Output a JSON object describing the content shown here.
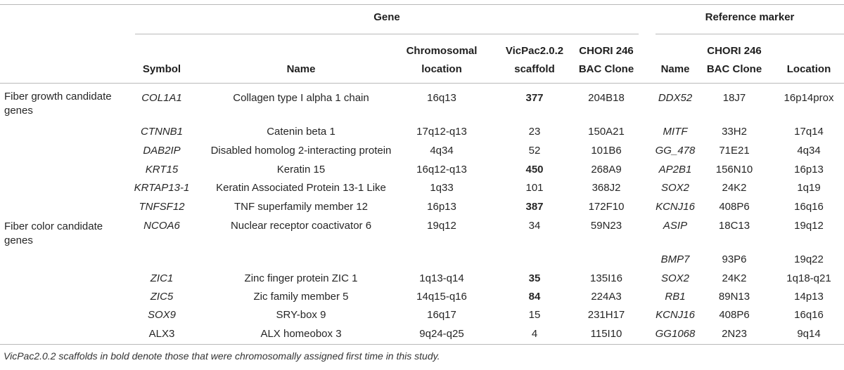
{
  "table": {
    "group_headers": {
      "gene": "Gene",
      "reference": "Reference marker"
    },
    "column_headers": {
      "symbol": "Symbol",
      "name": "Name",
      "chrom_location": [
        "Chromosomal",
        "location"
      ],
      "scaffold": [
        "VicPac2.0.2",
        "scaffold"
      ],
      "chori_clone": [
        "CHORI 246",
        "BAC Clone"
      ],
      "ref_name": "Name",
      "ref_clone": [
        "CHORI 246",
        "BAC Clone"
      ],
      "ref_location": "Location"
    },
    "categories": [
      {
        "label": [
          "Fiber growth candidate",
          "genes"
        ]
      },
      {
        "label": [
          "Fiber color candidate",
          "genes"
        ]
      }
    ],
    "rows": [
      {
        "symbol": "COL1A1",
        "symbol_italic": true,
        "name": "Collagen type I alpha 1 chain",
        "location": "16q13",
        "scaffold": "377",
        "scaffold_bold": true,
        "clone": "204B18",
        "ref_name": "DDX52",
        "ref_clone": "18J7",
        "ref_location": "16p14prox"
      },
      {
        "symbol": "CTNNB1",
        "symbol_italic": true,
        "name": "Catenin beta 1",
        "location": "17q12-q13",
        "scaffold": "23",
        "scaffold_bold": false,
        "clone": "150A21",
        "ref_name": "MITF",
        "ref_clone": "33H2",
        "ref_location": "17q14"
      },
      {
        "symbol": "DAB2IP",
        "symbol_italic": true,
        "name": "Disabled homolog 2-interacting protein",
        "location": "4q34",
        "scaffold": "52",
        "scaffold_bold": false,
        "clone": "101B6",
        "ref_name": "GG_478",
        "ref_clone": "71E21",
        "ref_location": "4q34"
      },
      {
        "symbol": "KRT15",
        "symbol_italic": true,
        "name": "Keratin 15",
        "location": "16q12-q13",
        "scaffold": "450",
        "scaffold_bold": true,
        "clone": "268A9",
        "ref_name": "AP2B1",
        "ref_clone": "156N10",
        "ref_location": "16p13"
      },
      {
        "symbol": "KRTAP13-1",
        "symbol_italic": true,
        "name": "Keratin Associated Protein 13-1 Like",
        "location": "1q33",
        "scaffold": "101",
        "scaffold_bold": false,
        "clone": "368J2",
        "ref_name": "SOX2",
        "ref_clone": "24K2",
        "ref_location": "1q19"
      },
      {
        "symbol": "TNFSF12",
        "symbol_italic": true,
        "name": "TNF superfamily member 12",
        "location": "16p13",
        "scaffold": "387",
        "scaffold_bold": true,
        "clone": "172F10",
        "ref_name": "KCNJ16",
        "ref_clone": "408P6",
        "ref_location": "16q16"
      },
      {
        "symbol": "NCOA6",
        "symbol_italic": true,
        "name": "Nuclear receptor coactivator 6",
        "location": "19q12",
        "scaffold": "34",
        "scaffold_bold": false,
        "clone": "59N23",
        "ref_name": "ASIP",
        "ref_clone": "18C13",
        "ref_location": "19q12"
      },
      {
        "symbol": "",
        "symbol_italic": true,
        "name": "",
        "location": "",
        "scaffold": "",
        "scaffold_bold": false,
        "clone": "",
        "ref_name": "BMP7",
        "ref_clone": "93P6",
        "ref_location": "19q22"
      },
      {
        "symbol": "ZIC1",
        "symbol_italic": true,
        "name": "Zinc finger protein ZIC 1",
        "location": "1q13-q14",
        "scaffold": "35",
        "scaffold_bold": true,
        "clone": "135I16",
        "ref_name": "SOX2",
        "ref_clone": "24K2",
        "ref_location": "1q18-q21"
      },
      {
        "symbol": "ZIC5",
        "symbol_italic": true,
        "name": "Zic family member 5",
        "location": "14q15-q16",
        "scaffold": "84",
        "scaffold_bold": true,
        "clone": "224A3",
        "ref_name": "RB1",
        "ref_clone": "89N13",
        "ref_location": "14p13"
      },
      {
        "symbol": "SOX9",
        "symbol_italic": true,
        "name": "SRY-box 9",
        "location": "16q17",
        "scaffold": "15",
        "scaffold_bold": false,
        "clone": "231H17",
        "ref_name": "KCNJ16",
        "ref_clone": "408P6",
        "ref_location": "16q16"
      },
      {
        "symbol": "ALX3",
        "symbol_italic": false,
        "name": "ALX homeobox 3",
        "location": "9q24-q25",
        "scaffold": "4",
        "scaffold_bold": false,
        "clone": "115I10",
        "ref_name": "GG1068",
        "ref_clone": "2N23",
        "ref_location": "9q14"
      }
    ],
    "footnote": "VicPac2.0.2 scaffolds in bold denote those that were chromosomally assigned first time in this study."
  }
}
